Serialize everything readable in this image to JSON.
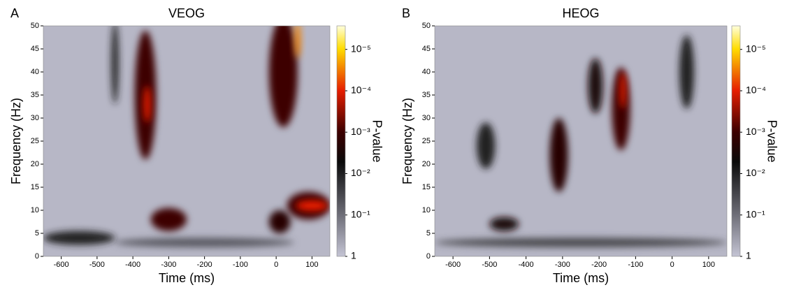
{
  "chart_data": [
    {
      "type": "heatmap",
      "panel_label": "A",
      "title": "VEOG",
      "x_label": "Time (ms)",
      "y_label": "Frequency (Hz)",
      "xlim": [
        -650,
        150
      ],
      "xticks": [
        -600,
        -500,
        -400,
        -300,
        -200,
        -100,
        0,
        100
      ],
      "ylim": [
        0,
        50
      ],
      "yticks": [
        0,
        5,
        10,
        15,
        20,
        25,
        30,
        35,
        40,
        45,
        50
      ],
      "x": [
        -200,
        -550,
        -450,
        -365,
        -360,
        20,
        60,
        -300,
        10,
        90,
        100
      ],
      "y": [
        3,
        4,
        42,
        35,
        33,
        40,
        47,
        8,
        7.5,
        11,
        11
      ],
      "x_spread": [
        250,
        100,
        10,
        30,
        10,
        40,
        8,
        50,
        30,
        60,
        45
      ],
      "y_spread": [
        1,
        1.5,
        9,
        14,
        4,
        12,
        4,
        2.5,
        2.5,
        3,
        1.2
      ],
      "values": [
        0.05,
        0.01,
        0.01,
        0.001,
        0.0001,
        0.001,
        3e-05,
        0.001,
        0.002,
        0.001,
        0.0001
      ],
      "colorbar_label": "P-value",
      "clim": [
        1,
        2.7e-06
      ],
      "cticks": [
        1,
        {
          "value": 0.1,
          "label": "10⁻¹"
        },
        {
          "value": 0.01,
          "label": "10⁻²"
        },
        {
          "value": 0.001,
          "label": "10⁻³"
        },
        {
          "value": 0.0001,
          "label": "10⁻⁴"
        },
        {
          "value": 1e-05,
          "label": "10⁻⁵"
        }
      ]
    },
    {
      "type": "heatmap",
      "panel_label": "B",
      "title": "HEOG",
      "x_label": "Time (ms)",
      "y_label": "Frequency (Hz)",
      "xlim": [
        -650,
        150
      ],
      "xticks": [
        -600,
        -500,
        -400,
        -300,
        -200,
        -100,
        0,
        100
      ],
      "ylim": [
        0,
        50
      ],
      "yticks": [
        0,
        5,
        10,
        15,
        20,
        25,
        30,
        35,
        40,
        45,
        50
      ],
      "x": [
        -250,
        -460,
        -510,
        -310,
        -210,
        40,
        -140,
        -135
      ],
      "y": [
        3,
        7,
        24,
        22,
        37,
        40,
        32,
        36
      ],
      "x_spread": [
        400,
        40,
        25,
        25,
        20,
        20,
        25,
        8
      ],
      "y_spread": [
        1,
        1.5,
        5,
        8,
        6,
        8,
        9,
        4
      ],
      "values": [
        0.03,
        0.003,
        0.01,
        0.002,
        0.003,
        0.01,
        0.001,
        0.0001
      ],
      "colorbar_label": "P-value",
      "clim": [
        1,
        2.7e-06
      ],
      "cticks": [
        1,
        {
          "value": 0.1,
          "label": "10⁻¹"
        },
        {
          "value": 0.01,
          "label": "10⁻²"
        },
        {
          "value": 0.001,
          "label": "10⁻³"
        },
        {
          "value": 0.0001,
          "label": "10⁻⁴"
        },
        {
          "value": 1e-05,
          "label": "10⁻⁵"
        }
      ]
    }
  ]
}
